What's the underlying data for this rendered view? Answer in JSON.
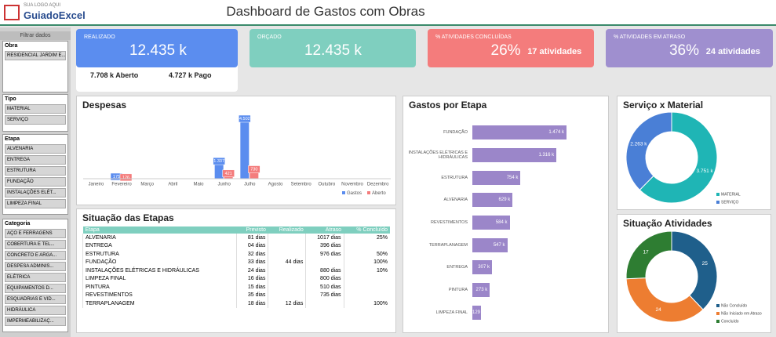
{
  "header": {
    "logo_tag": "SUA LOGO AQUI",
    "logo": "GuiadoExcel",
    "title": "Dashboard de Gastos com Obras"
  },
  "filters": {
    "title": "Filtrar dados",
    "slicers": [
      {
        "name": "Obra",
        "items": [
          "RESIDENCIAL JARDIM E..."
        ]
      },
      {
        "name": "Tipo",
        "items": [
          "MATERIAL",
          "SERVIÇO"
        ]
      },
      {
        "name": "Etapa",
        "items": [
          "ALVENARIA",
          "ENTREGA",
          "ESTRUTURA",
          "FUNDAÇÃO",
          "INSTALAÇÕES ELÉT...",
          "LIMPEZA FINAL"
        ]
      },
      {
        "name": "Categoria",
        "items": [
          "AÇO E FERRAGENS",
          "COBERTURA E TEL...",
          "CONCRETO E ARGA...",
          "DESPESA ADMINIS...",
          "ELÉTRICA",
          "EQUIPAMENTOS D...",
          "ESQUADRIAS E VID...",
          "HIDRÁULICA",
          "IMPERMEABILIZAÇ..."
        ]
      }
    ]
  },
  "kpis": [
    {
      "label": "REALIZADO",
      "value": "12.435 k",
      "details": [
        "7.708 k Aberto",
        "4.727 k Pago"
      ]
    },
    {
      "label": "ORÇADO",
      "value": "12.435 k"
    },
    {
      "label": "% ATIVIDADES CONCLUÍDAS",
      "value": "26%",
      "detail": "17 atividades"
    },
    {
      "label": "% ATIVIDADES EM ATRASO",
      "value": "36%",
      "detail": "24 atividades"
    }
  ],
  "table": {
    "title": "Situação das Etapas",
    "columns": [
      "Etapa",
      "Previsto",
      "Realizado",
      "Atraso",
      "% Concluído"
    ],
    "rows": [
      [
        "ALVENARIA",
        "81 dias",
        null,
        "1017 dias",
        "25%"
      ],
      [
        "ENTREGA",
        "04 dias",
        null,
        "396 dias",
        null
      ],
      [
        "ESTRUTURA",
        "32 dias",
        null,
        "976 dias",
        "50%"
      ],
      [
        "FUNDAÇÃO",
        "33 dias",
        "44 dias",
        null,
        "100%"
      ],
      [
        "INSTALAÇÕES ELÉTRICAS E HIDRÁULICAS",
        "24 dias",
        null,
        "880 dias",
        "10%"
      ],
      [
        "LIMPEZA FINAL",
        "16 dias",
        null,
        "800 dias",
        null
      ],
      [
        "PINTURA",
        "15 dias",
        null,
        "510 dias",
        null
      ],
      [
        "REVESTIMENTOS",
        "35 dias",
        null,
        "735 dias",
        null
      ],
      [
        "TERRAPLANAGEM",
        "18 dias",
        "12 dias",
        null,
        "100%"
      ]
    ]
  },
  "chart_data": [
    {
      "type": "bar",
      "title": "Despesas",
      "categories": [
        "Janeiro",
        "Fevereiro",
        "Março",
        "Abril",
        "Maio",
        "Junho",
        "Julho",
        "Agosto",
        "Setembro",
        "Outubro",
        "Novembro",
        "Dezembro"
      ],
      "series": [
        {
          "name": "Gastos",
          "color": "#5b8def",
          "values": [
            null,
            175,
            null,
            null,
            null,
            1337,
            4502,
            null,
            null,
            null,
            null,
            null
          ],
          "value_labels": [
            null,
            "175",
            null,
            null,
            null,
            "1.337",
            "4.502",
            null,
            null,
            null,
            null,
            null
          ]
        },
        {
          "name": "Aberto",
          "color": "#f47c7c",
          "values": [
            null,
            126,
            null,
            null,
            null,
            421,
            730,
            null,
            null,
            null,
            null,
            null
          ],
          "value_labels": [
            null,
            "126",
            null,
            null,
            null,
            "421",
            "730",
            null,
            null,
            null,
            null,
            null
          ]
        }
      ]
    },
    {
      "type": "barh",
      "title": "Gastos por Etapa",
      "color": "#9b86c9",
      "categories": [
        "FUNDAÇÃO",
        "INSTALAÇÕES ELÉTRICAS E HIDRÁULICAS",
        "ESTRUTURA",
        "ALVENARIA",
        "REVESTIMENTOS",
        "TERRAPLANAGEM",
        "ENTREGA",
        "PINTURA",
        "LIMPEZA FINAL"
      ],
      "values": [
        1474,
        1316,
        754,
        629,
        584,
        547,
        307,
        273,
        129
      ],
      "value_labels": [
        "1.474 k",
        "1.316 k",
        "754 k",
        "629 k",
        "584 k",
        "547 k",
        "307 k",
        "273 k",
        "129 k"
      ]
    },
    {
      "type": "donut",
      "title": "Serviço x Material",
      "categories": [
        "MATERIAL",
        "SERVIÇO"
      ],
      "colors": [
        "#1fb5b5",
        "#4a7fd6"
      ],
      "values": [
        3751,
        2263
      ],
      "value_labels": [
        "3.751 k",
        "2.263 k"
      ]
    },
    {
      "type": "donut",
      "title": "Situação Atividades",
      "categories": [
        "Não Concluído",
        "Não Iniciado em Atraso",
        "Concluído"
      ],
      "colors": [
        "#1f5f8b",
        "#ed7d31",
        "#2e7d32"
      ],
      "values": [
        25,
        24,
        17
      ]
    }
  ]
}
